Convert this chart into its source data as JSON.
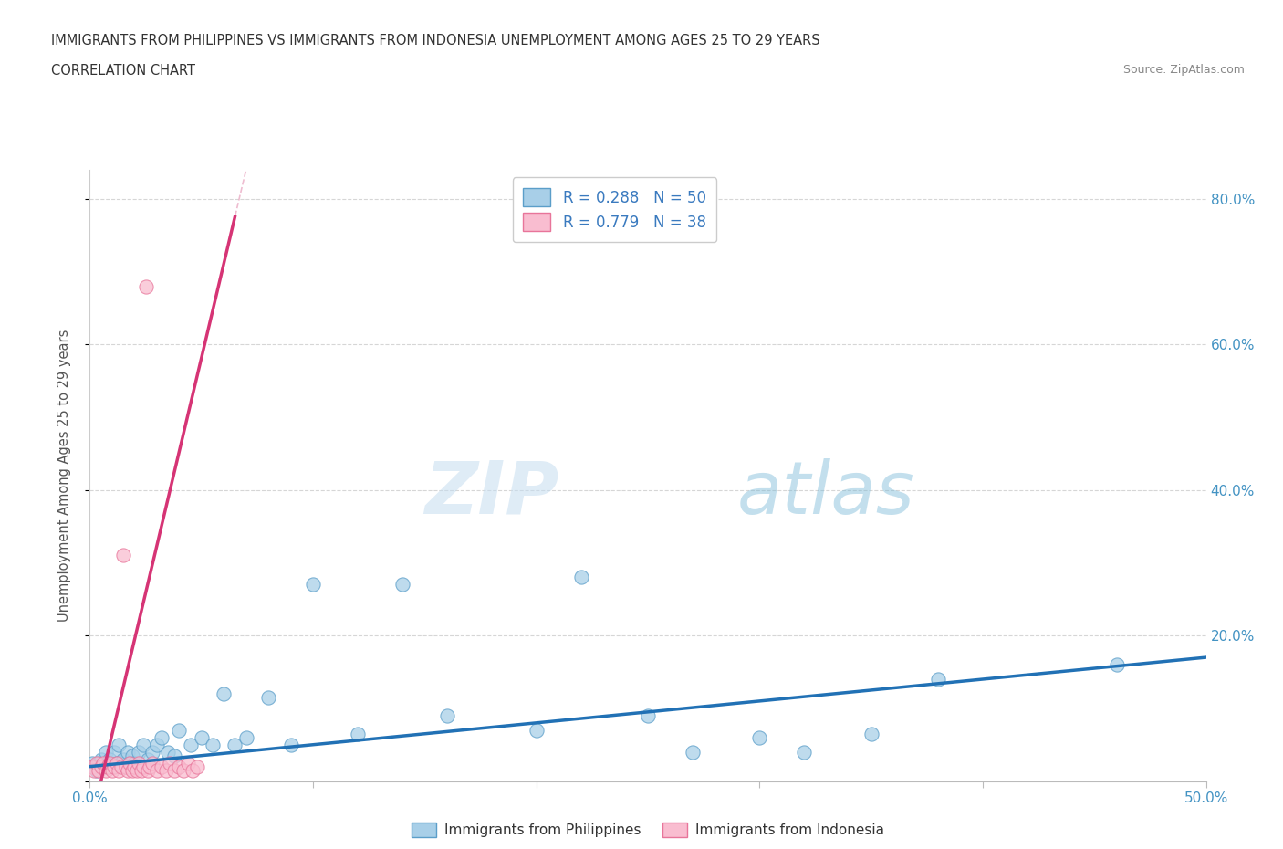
{
  "title_line1": "IMMIGRANTS FROM PHILIPPINES VS IMMIGRANTS FROM INDONESIA UNEMPLOYMENT AMONG AGES 25 TO 29 YEARS",
  "title_line2": "CORRELATION CHART",
  "source_text": "Source: ZipAtlas.com",
  "ylabel": "Unemployment Among Ages 25 to 29 years",
  "watermark_zip": "ZIP",
  "watermark_atlas": "atlas",
  "xlim": [
    0.0,
    0.5
  ],
  "ylim": [
    0.0,
    0.84
  ],
  "philippines_color": "#a8cfe8",
  "philippines_edge": "#5b9ec9",
  "indonesia_color": "#f9bdd0",
  "indonesia_edge": "#e8759a",
  "trend_philippines_color": "#2171b5",
  "trend_indonesia_color": "#d63475",
  "trend_indonesia_dashed_color": "#e8a0bc",
  "R_philippines": 0.288,
  "N_philippines": 50,
  "R_indonesia": 0.779,
  "N_indonesia": 38,
  "legend_label_philippines": "Immigrants from Philippines",
  "legend_label_indonesia": "Immigrants from Indonesia",
  "phil_x": [
    0.001,
    0.002,
    0.003,
    0.004,
    0.005,
    0.006,
    0.007,
    0.008,
    0.009,
    0.01,
    0.011,
    0.012,
    0.013,
    0.014,
    0.015,
    0.016,
    0.017,
    0.018,
    0.019,
    0.02,
    0.022,
    0.024,
    0.026,
    0.028,
    0.03,
    0.032,
    0.035,
    0.038,
    0.04,
    0.045,
    0.05,
    0.055,
    0.06,
    0.065,
    0.07,
    0.08,
    0.09,
    0.1,
    0.12,
    0.14,
    0.16,
    0.2,
    0.22,
    0.25,
    0.27,
    0.3,
    0.32,
    0.35,
    0.38,
    0.46
  ],
  "phil_y": [
    0.025,
    0.02,
    0.015,
    0.025,
    0.03,
    0.02,
    0.04,
    0.02,
    0.03,
    0.02,
    0.04,
    0.025,
    0.05,
    0.025,
    0.03,
    0.02,
    0.04,
    0.025,
    0.035,
    0.025,
    0.04,
    0.05,
    0.03,
    0.04,
    0.05,
    0.06,
    0.04,
    0.035,
    0.07,
    0.05,
    0.06,
    0.05,
    0.12,
    0.05,
    0.06,
    0.115,
    0.05,
    0.27,
    0.065,
    0.27,
    0.09,
    0.07,
    0.28,
    0.09,
    0.04,
    0.06,
    0.04,
    0.065,
    0.14,
    0.16
  ],
  "indo_x": [
    0.001,
    0.002,
    0.003,
    0.004,
    0.005,
    0.006,
    0.007,
    0.008,
    0.009,
    0.01,
    0.011,
    0.012,
    0.013,
    0.014,
    0.015,
    0.016,
    0.017,
    0.018,
    0.019,
    0.02,
    0.021,
    0.022,
    0.023,
    0.024,
    0.025,
    0.026,
    0.027,
    0.028,
    0.03,
    0.032,
    0.034,
    0.036,
    0.038,
    0.04,
    0.042,
    0.044,
    0.046,
    0.048
  ],
  "indo_y": [
    0.02,
    0.015,
    0.025,
    0.015,
    0.02,
    0.025,
    0.015,
    0.02,
    0.025,
    0.015,
    0.02,
    0.025,
    0.015,
    0.02,
    0.31,
    0.02,
    0.015,
    0.025,
    0.015,
    0.02,
    0.015,
    0.025,
    0.015,
    0.02,
    0.68,
    0.015,
    0.02,
    0.025,
    0.015,
    0.02,
    0.015,
    0.025,
    0.015,
    0.02,
    0.015,
    0.025,
    0.015,
    0.02
  ]
}
